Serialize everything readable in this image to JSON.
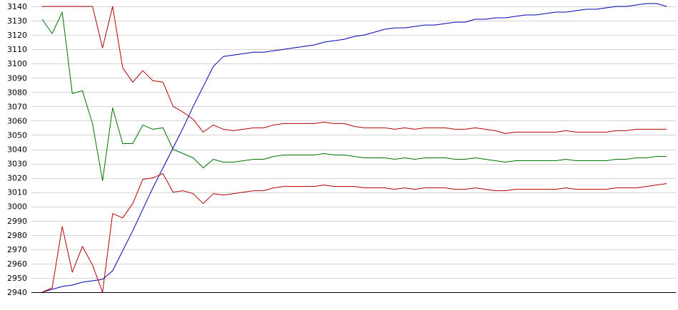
{
  "chart_data": {
    "type": "line",
    "title": "",
    "xlabel": "",
    "ylabel": "",
    "ylim": [
      2940,
      3140
    ],
    "yticks": [
      2940,
      2950,
      2960,
      2970,
      2980,
      2990,
      3000,
      3010,
      3020,
      3030,
      3040,
      3050,
      3060,
      3070,
      3080,
      3090,
      3100,
      3110,
      3120,
      3130,
      3140
    ],
    "grid": true,
    "x": [
      0,
      1,
      2,
      3,
      4,
      5,
      6,
      7,
      8,
      9,
      10,
      11,
      12,
      13,
      14,
      15,
      16,
      17,
      18,
      19,
      20,
      21,
      22,
      23,
      24,
      25,
      26,
      27,
      28,
      29,
      30,
      31,
      32,
      33,
      34,
      35,
      36,
      37,
      38,
      39,
      40,
      41,
      42,
      43,
      44,
      45,
      46,
      47,
      48,
      49,
      50,
      51,
      52,
      53,
      54,
      55,
      56,
      57,
      58,
      59,
      60,
      61,
      62
    ],
    "series": [
      {
        "color": "#0000b0",
        "values": [
          2940,
          2942,
          2944,
          2945,
          2947,
          2948,
          2949,
          2955,
          2969,
          2983,
          2998,
          3013,
          3027,
          3041,
          3055,
          3070,
          3084,
          3098,
          3105,
          3106,
          3107,
          3108,
          3108,
          3109,
          3110,
          3111,
          3112,
          3113,
          3115,
          3116,
          3117,
          3119,
          3120,
          3122,
          3124,
          3125,
          3125,
          3126,
          3127,
          3127,
          3128,
          3129,
          3129,
          3131,
          3131,
          3132,
          3132,
          3133,
          3134,
          3134,
          3135,
          3136,
          3136,
          3137,
          3138,
          3138,
          3139,
          3140,
          3140,
          3141,
          3142,
          3142,
          3140
        ]
      },
      {
        "color": "#b00000",
        "values": [
          3140,
          3140,
          3140,
          3140,
          3140,
          3140,
          3111,
          3140,
          3097,
          3087,
          3095,
          3088,
          3087,
          3070,
          3066,
          3061,
          3052,
          3057,
          3054,
          3053,
          3054,
          3055,
          3055,
          3057,
          3058,
          3058,
          3058,
          3058,
          3059,
          3058,
          3058,
          3056,
          3055,
          3055,
          3055,
          3054,
          3055,
          3054,
          3055,
          3055,
          3055,
          3054,
          3054,
          3055,
          3054,
          3053,
          3051,
          3052,
          3052,
          3052,
          3052,
          3052,
          3053,
          3052,
          3052,
          3052,
          3052,
          3053,
          3053,
          3054,
          3054,
          3054,
          3054
        ]
      },
      {
        "color": "#007000",
        "values": [
          3131,
          3121,
          3136,
          3079,
          3081,
          3058,
          3018,
          3069,
          3044,
          3044,
          3057,
          3054,
          3055,
          3040,
          3037,
          3034,
          3027,
          3033,
          3031,
          3031,
          3032,
          3033,
          3033,
          3035,
          3036,
          3036,
          3036,
          3036,
          3037,
          3036,
          3036,
          3035,
          3034,
          3034,
          3034,
          3033,
          3034,
          3033,
          3034,
          3034,
          3034,
          3033,
          3033,
          3034,
          3033,
          3032,
          3031,
          3032,
          3032,
          3032,
          3032,
          3032,
          3033,
          3032,
          3032,
          3032,
          3032,
          3033,
          3033,
          3034,
          3034,
          3035,
          3035
        ]
      },
      {
        "color": "#b00000",
        "values": [
          2940,
          2943,
          2986,
          2954,
          2972,
          2959,
          2940,
          2995,
          2992,
          3002,
          3019,
          3020,
          3023,
          3010,
          3011,
          3009,
          3002,
          3009,
          3008,
          3009,
          3010,
          3011,
          3011,
          3013,
          3014,
          3014,
          3014,
          3014,
          3015,
          3014,
          3014,
          3014,
          3013,
          3013,
          3013,
          3012,
          3013,
          3012,
          3013,
          3013,
          3013,
          3012,
          3012,
          3013,
          3012,
          3011,
          3011,
          3012,
          3012,
          3012,
          3012,
          3012,
          3013,
          3012,
          3012,
          3012,
          3012,
          3013,
          3013,
          3013,
          3014,
          3015,
          3016
        ]
      }
    ]
  }
}
